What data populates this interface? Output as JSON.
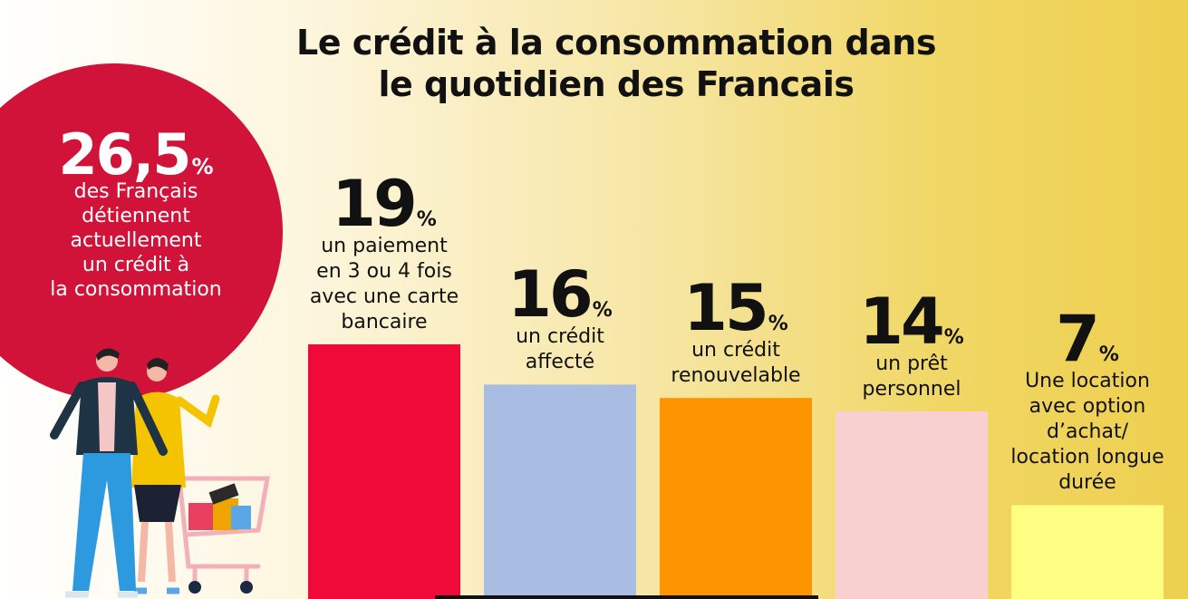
{
  "title_line1": "Le crédit à la consommation dans",
  "title_line2": "le quotidien des Francais",
  "highlight": {
    "value": "26,5",
    "unit": "%",
    "lines": [
      "des Français",
      "détiennent",
      "actuellement",
      "un crédit à",
      "la consommation"
    ]
  },
  "colors": {
    "circle": "#d11239",
    "bars": [
      "#ef0a3a",
      "#a9bde2",
      "#fe9500",
      "#f8d0d0",
      "#fefe82"
    ]
  },
  "chart_data": {
    "type": "bar",
    "categories": [
      "un paiement en 3 ou 4 fois avec une carte bancaire",
      "un crédit affecté",
      "un crédit renouvelable",
      "un prêt personnel",
      "Une location avec option d’achat/ location longue durée"
    ],
    "values": [
      19,
      16,
      15,
      14,
      7
    ],
    "value_labels": [
      "19",
      "16",
      "15",
      "14",
      "7"
    ],
    "unit": "%",
    "description_lines": [
      [
        "un paiement",
        "en 3 ou 4 fois",
        "avec une carte",
        "bancaire"
      ],
      [
        "un crédit",
        "affecté"
      ],
      [
        "un crédit",
        "renouvelable"
      ],
      [
        "un prêt",
        "personnel"
      ],
      [
        "Une location",
        "avec option",
        "d’achat/",
        "location longue",
        "durée"
      ]
    ],
    "ylim": [
      0,
      19
    ],
    "grid": false,
    "legend": "none"
  },
  "illustration": "couple-with-shopping-cart"
}
